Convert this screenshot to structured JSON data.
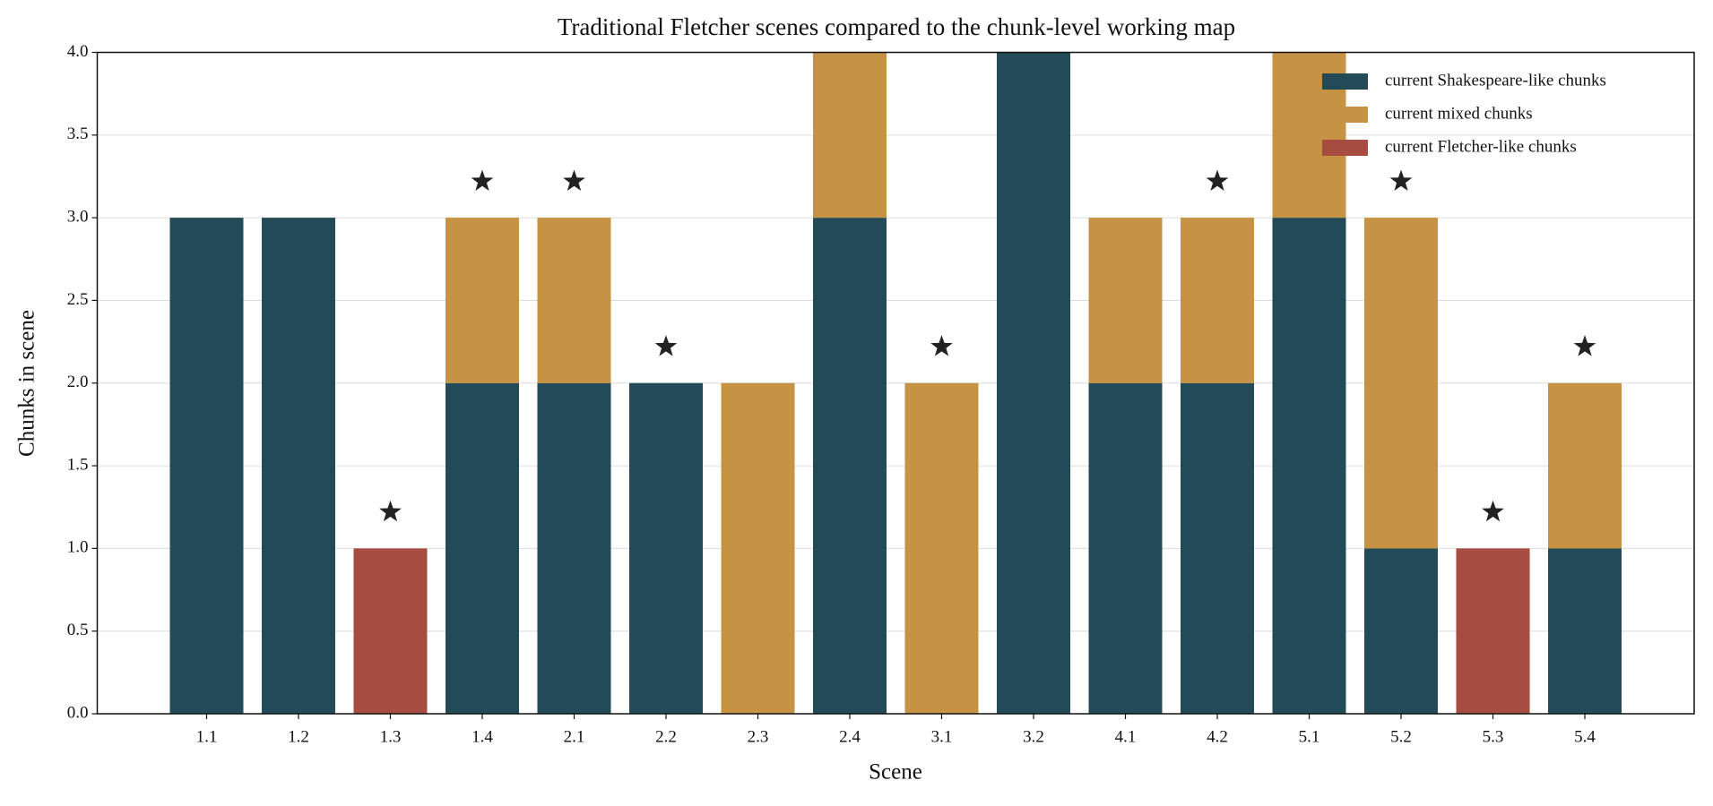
{
  "chart_data": {
    "type": "stacked_bar",
    "title": "Traditional Fletcher scenes compared to the chunk-level working map",
    "x_label": "Scene",
    "y_label": "Chunks in scene",
    "categories": [
      "1.1",
      "1.2",
      "1.3",
      "1.4",
      "2.1",
      "2.2",
      "2.3",
      "2.4",
      "3.1",
      "3.2",
      "4.1",
      "4.2",
      "5.1",
      "5.2",
      "5.3",
      "5.4"
    ],
    "series": [
      {
        "name": "current Shakespeare-like chunks",
        "color": "#224b57",
        "values": [
          3,
          3,
          0,
          2,
          2,
          2,
          0,
          3,
          0,
          4,
          2,
          2,
          3,
          1,
          0,
          1
        ]
      },
      {
        "name": "current mixed chunks",
        "color": "#c69243",
        "values": [
          0,
          0,
          0,
          1,
          1,
          0,
          2,
          1,
          2,
          0,
          1,
          1,
          1,
          2,
          0,
          1
        ]
      },
      {
        "name": "current Fletcher-like chunks",
        "color": "#a64c40",
        "values": [
          0,
          0,
          1,
          0,
          0,
          0,
          0,
          0,
          0,
          0,
          0,
          0,
          0,
          0,
          1,
          0
        ]
      }
    ],
    "traditional_fletcher": [
      false,
      false,
      true,
      true,
      true,
      true,
      false,
      false,
      true,
      false,
      false,
      true,
      false,
      true,
      true,
      true
    ],
    "marker_color": "#222222",
    "ylim": [
      0,
      4
    ],
    "yticks": [
      {
        "value": 0,
        "label": "0.0"
      },
      {
        "value": 0.5,
        "label": "0.5"
      },
      {
        "value": 1,
        "label": "1.0"
      },
      {
        "value": 1.5,
        "label": "1.5"
      },
      {
        "value": 2,
        "label": "2.0"
      },
      {
        "value": 2.5,
        "label": "2.5"
      },
      {
        "value": 3,
        "label": "3.0"
      },
      {
        "value": 3.5,
        "label": "3.5"
      },
      {
        "value": 4,
        "label": "4.0"
      }
    ],
    "grid": true,
    "legend": "upper right"
  }
}
